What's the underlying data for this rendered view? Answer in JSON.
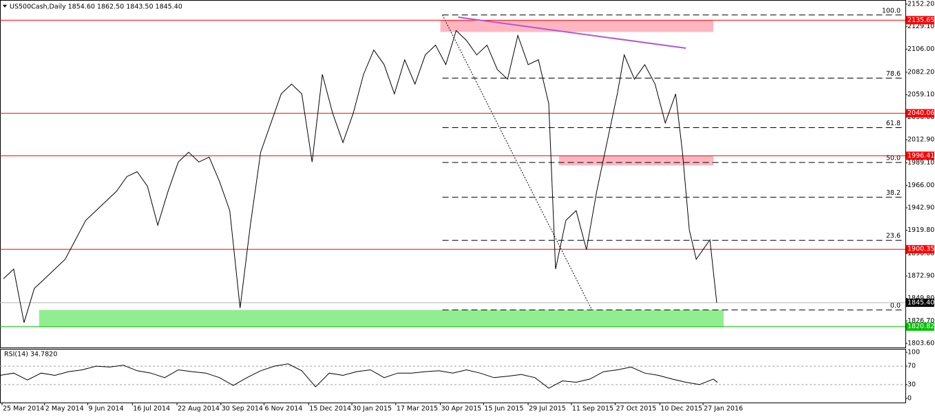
{
  "chart_data": [
    {
      "type": "line",
      "title": "US500Cash,Daily  1854.60 1862.50 1843.50 1845.40",
      "x": [
        2.5,
        10,
        17.5,
        25,
        32.5,
        40,
        47.5,
        55,
        62.5,
        70,
        77.5,
        85,
        92.5,
        100,
        107.5,
        115,
        122.5,
        130,
        137.5,
        145,
        152.5,
        160,
        167.5,
        175,
        182.5,
        190,
        197.5,
        205,
        212.5,
        220,
        227.5,
        235,
        242.5,
        250,
        257.5,
        265,
        272.5,
        280,
        287.5,
        295,
        302.5,
        310,
        317.5,
        325,
        332.5,
        340,
        347.5,
        355,
        362.5,
        370,
        377.5,
        385,
        392.5,
        400,
        405,
        412.5,
        420,
        427.5,
        435,
        442.5,
        450,
        455,
        462.5,
        470,
        477.5,
        485,
        492.5,
        497.5,
        502.5,
        507.5,
        512.5,
        517.5,
        522.5
      ],
      "values": [
        1870,
        1880,
        1825,
        1860,
        1870,
        1880,
        1890,
        1910,
        1930,
        1940,
        1950,
        1960,
        1975,
        1980,
        1965,
        1925,
        1960,
        1990,
        2000,
        1990,
        1995,
        1970,
        1940,
        1840,
        1925,
        2000,
        2030,
        2060,
        2070,
        2060,
        1990,
        2080,
        2040,
        2010,
        2040,
        2080,
        2105,
        2090,
        2060,
        2095,
        2070,
        2100,
        2110,
        2090,
        2125,
        2115,
        2100,
        2110,
        2085,
        2075,
        2120,
        2090,
        2095,
        2050,
        1880,
        1930,
        1940,
        1900,
        1960,
        2010,
        2060,
        2100,
        2075,
        2090,
        2070,
        2030,
        2060,
        2000,
        1920,
        1890,
        1900,
        1910,
        1845.4
      ],
      "color": "#000000",
      "xlim": [
        0,
        660
      ],
      "xticks": [
        {
          "value": 1.5,
          "label": "25 Mar 2014"
        },
        {
          "value": 32.5,
          "label": "2 May 2014"
        },
        {
          "value": 64,
          "label": "9 Jun 2014"
        },
        {
          "value": 96.5,
          "label": "16 Jul 2014"
        },
        {
          "value": 129,
          "label": "22 Aug 2014"
        },
        {
          "value": 161,
          "label": "30 Sep 2014"
        },
        {
          "value": 192.5,
          "label": "6 Nov 2014"
        },
        {
          "value": 225,
          "label": "15 Dec 2014"
        },
        {
          "value": 256.5,
          "label": "30 Jan 2015"
        },
        {
          "value": 288.5,
          "label": "17 Mar 2015"
        },
        {
          "value": 321,
          "label": "30 Apr 2015"
        },
        {
          "value": 352.5,
          "label": "15 Jun 2015"
        },
        {
          "value": 385,
          "label": "29 Jul 2015"
        },
        {
          "value": 416.5,
          "label": "11 Sep 2015"
        },
        {
          "value": 448.5,
          "label": "27 Oct 2015"
        },
        {
          "value": 481,
          "label": "10 Dec 2015"
        },
        {
          "value": 512.5,
          "label": "27 Jan 2016"
        }
      ],
      "ylim": [
        1799.4,
        2156.4
      ],
      "yticks": [
        {
          "value": 2152.2,
          "label": "2152.20"
        },
        {
          "value": 2129.1,
          "label": "2129.10"
        },
        {
          "value": 2106,
          "label": "2106.00"
        },
        {
          "value": 2082.2,
          "label": "2082.20"
        },
        {
          "value": 2059.1,
          "label": "2059.10"
        },
        {
          "value": 2036,
          "label": "2036.00"
        },
        {
          "value": 2012.9,
          "label": "2012.90"
        },
        {
          "value": 1989.1,
          "label": "1989.10"
        },
        {
          "value": 1966,
          "label": "1966.00"
        },
        {
          "value": 1942.9,
          "label": "1942.90"
        },
        {
          "value": 1919.8,
          "label": "1919.80"
        },
        {
          "value": 1896,
          "label": "1896.00"
        },
        {
          "value": 1872.9,
          "label": "1872.90"
        },
        {
          "value": 1849.8,
          "label": "1849.80"
        },
        {
          "value": 1826.7,
          "label": "1826.70"
        },
        {
          "value": 1803.6,
          "label": "1803.60"
        }
      ],
      "levels": [
        2135.65,
        2040.06,
        1996.41,
        1900.35
      ],
      "level_color": "#ff0000",
      "support_level": 1820.82,
      "support_color": "#00c000",
      "last_price": {
        "value": 1845.4,
        "label": "1845.40"
      },
      "zones": [
        {
          "x": [
            321,
            520
          ],
          "y": [
            2123.6,
            2135.6
          ],
          "color": "#ffb6c1"
        },
        {
          "x": [
            407.5,
            520
          ],
          "y": [
            1986.5,
            1996.4
          ],
          "color": "#ffb6c1"
        },
        {
          "x": [
            28.5,
            527.5
          ],
          "y": [
            1820.8,
            1838
          ],
          "color": "#90ee90"
        }
      ],
      "fibonacci": {
        "x": [
          322.5,
          657.5
        ],
        "high": 2141,
        "low": 1838,
        "levels": [
          {
            "value": 100,
            "label": "100.0"
          },
          78.6,
          61.8,
          {
            "value": 50,
            "label": "50.0"
          },
          38.2,
          23.6,
          {
            "value": 0,
            "label": "0.0"
          }
        ]
      },
      "trendline": {
        "x": [
          334,
          500
        ],
        "y": [
          2138.7,
          2106.9
        ],
        "color": "#b455d6"
      },
      "retracement_line": {
        "x": [
          322.5,
          431.5
        ],
        "y": [
          2141,
          1838
        ]
      }
    },
    {
      "type": "line",
      "title": "RSI(14) 34.7820",
      "x": [
        0,
        10,
        20,
        30,
        40,
        50,
        60,
        70,
        80,
        90,
        100,
        110,
        120,
        130,
        140,
        150,
        160,
        170,
        180,
        190,
        200,
        210,
        220,
        230,
        240,
        250,
        260,
        270,
        280,
        290,
        300,
        310,
        320,
        330,
        340,
        350,
        360,
        370,
        380,
        390,
        400,
        410,
        420,
        430,
        440,
        450,
        460,
        470,
        480,
        490,
        500,
        510,
        520,
        523
      ],
      "values": [
        50,
        55,
        40,
        55,
        50,
        58,
        62,
        70,
        68,
        72,
        60,
        55,
        45,
        62,
        58,
        55,
        45,
        28,
        45,
        60,
        70,
        75,
        60,
        25,
        55,
        50,
        58,
        62,
        45,
        55,
        55,
        58,
        60,
        55,
        62,
        55,
        45,
        48,
        52,
        45,
        22,
        38,
        35,
        42,
        58,
        62,
        68,
        55,
        50,
        42,
        35,
        30,
        42,
        34.782
      ],
      "color": "#000000",
      "xlim": [
        0,
        660
      ],
      "ylim": [
        -9,
        107.5
      ],
      "yticks": [
        100,
        70,
        30,
        0
      ],
      "levels": [
        70,
        30
      ]
    }
  ]
}
